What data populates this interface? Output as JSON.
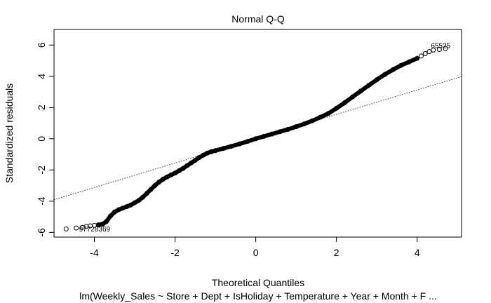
{
  "chart_data": {
    "type": "scatter",
    "title": "Normal Q-Q",
    "xlabel": "Theoretical Quantiles",
    "ylabel": "Standardized residuals",
    "caption": "lm(Weekly_Sales ~ Store + Dept + IsHoliday + Temperature + Year + Month + F ...",
    "xlim": [
      -5.0,
      5.1
    ],
    "ylim": [
      -6.3,
      7.0
    ],
    "x_ticks": [
      -4,
      -2,
      0,
      2,
      4
    ],
    "y_ticks": [
      -6,
      -4,
      -2,
      0,
      2,
      4,
      6
    ],
    "reference_line": {
      "slope": 0.78,
      "intercept": 0.0,
      "style": "dotted"
    },
    "points": [
      [
        -4.7,
        -5.78
      ],
      [
        -4.45,
        -5.72
      ],
      [
        -4.3,
        -5.68
      ],
      [
        -4.2,
        -5.62
      ],
      [
        -4.1,
        -5.58
      ],
      [
        -4.0,
        -5.55
      ],
      [
        -3.9,
        -5.52
      ],
      [
        -3.8,
        -5.48
      ],
      [
        -3.7,
        -5.3
      ],
      [
        -3.6,
        -4.95
      ],
      [
        -3.5,
        -4.7
      ],
      [
        -3.4,
        -4.55
      ],
      [
        -3.3,
        -4.45
      ],
      [
        -3.2,
        -4.35
      ],
      [
        -3.1,
        -4.25
      ],
      [
        -3.0,
        -4.1
      ],
      [
        -2.9,
        -3.95
      ],
      [
        -2.8,
        -3.75
      ],
      [
        -2.7,
        -3.5
      ],
      [
        -2.6,
        -3.25
      ],
      [
        -2.5,
        -3.0
      ],
      [
        -2.4,
        -2.78
      ],
      [
        -2.3,
        -2.6
      ],
      [
        -2.2,
        -2.45
      ],
      [
        -2.1,
        -2.32
      ],
      [
        -2.0,
        -2.2
      ],
      [
        -1.9,
        -2.05
      ],
      [
        -1.8,
        -1.9
      ],
      [
        -1.7,
        -1.72
      ],
      [
        -1.6,
        -1.55
      ],
      [
        -1.5,
        -1.38
      ],
      [
        -1.4,
        -1.2
      ],
      [
        -1.3,
        -1.05
      ],
      [
        -1.2,
        -0.92
      ],
      [
        -1.1,
        -0.83
      ],
      [
        -1.0,
        -0.76
      ],
      [
        -0.8,
        -0.62
      ],
      [
        -0.6,
        -0.48
      ],
      [
        -0.4,
        -0.33
      ],
      [
        -0.2,
        -0.17
      ],
      [
        0.0,
        0.0
      ],
      [
        0.2,
        0.15
      ],
      [
        0.4,
        0.3
      ],
      [
        0.6,
        0.45
      ],
      [
        0.8,
        0.6
      ],
      [
        1.0,
        0.77
      ],
      [
        1.2,
        0.95
      ],
      [
        1.4,
        1.15
      ],
      [
        1.6,
        1.38
      ],
      [
        1.8,
        1.62
      ],
      [
        2.0,
        1.95
      ],
      [
        2.2,
        2.3
      ],
      [
        2.4,
        2.68
      ],
      [
        2.6,
        3.05
      ],
      [
        2.8,
        3.42
      ],
      [
        3.0,
        3.78
      ],
      [
        3.2,
        4.12
      ],
      [
        3.4,
        4.42
      ],
      [
        3.6,
        4.7
      ],
      [
        3.8,
        4.92
      ],
      [
        4.0,
        5.15
      ],
      [
        4.1,
        5.3
      ],
      [
        4.2,
        5.45
      ],
      [
        4.3,
        5.58
      ],
      [
        4.4,
        5.68
      ],
      [
        4.55,
        5.72
      ],
      [
        4.7,
        5.78
      ]
    ],
    "point_labels": [
      {
        "text": "65525",
        "x": 4.55,
        "y": 5.72,
        "anchor": "left-top"
      },
      {
        "text": "97728369",
        "x": -4.45,
        "y": -5.72,
        "anchor": "right-bottom"
      }
    ]
  }
}
